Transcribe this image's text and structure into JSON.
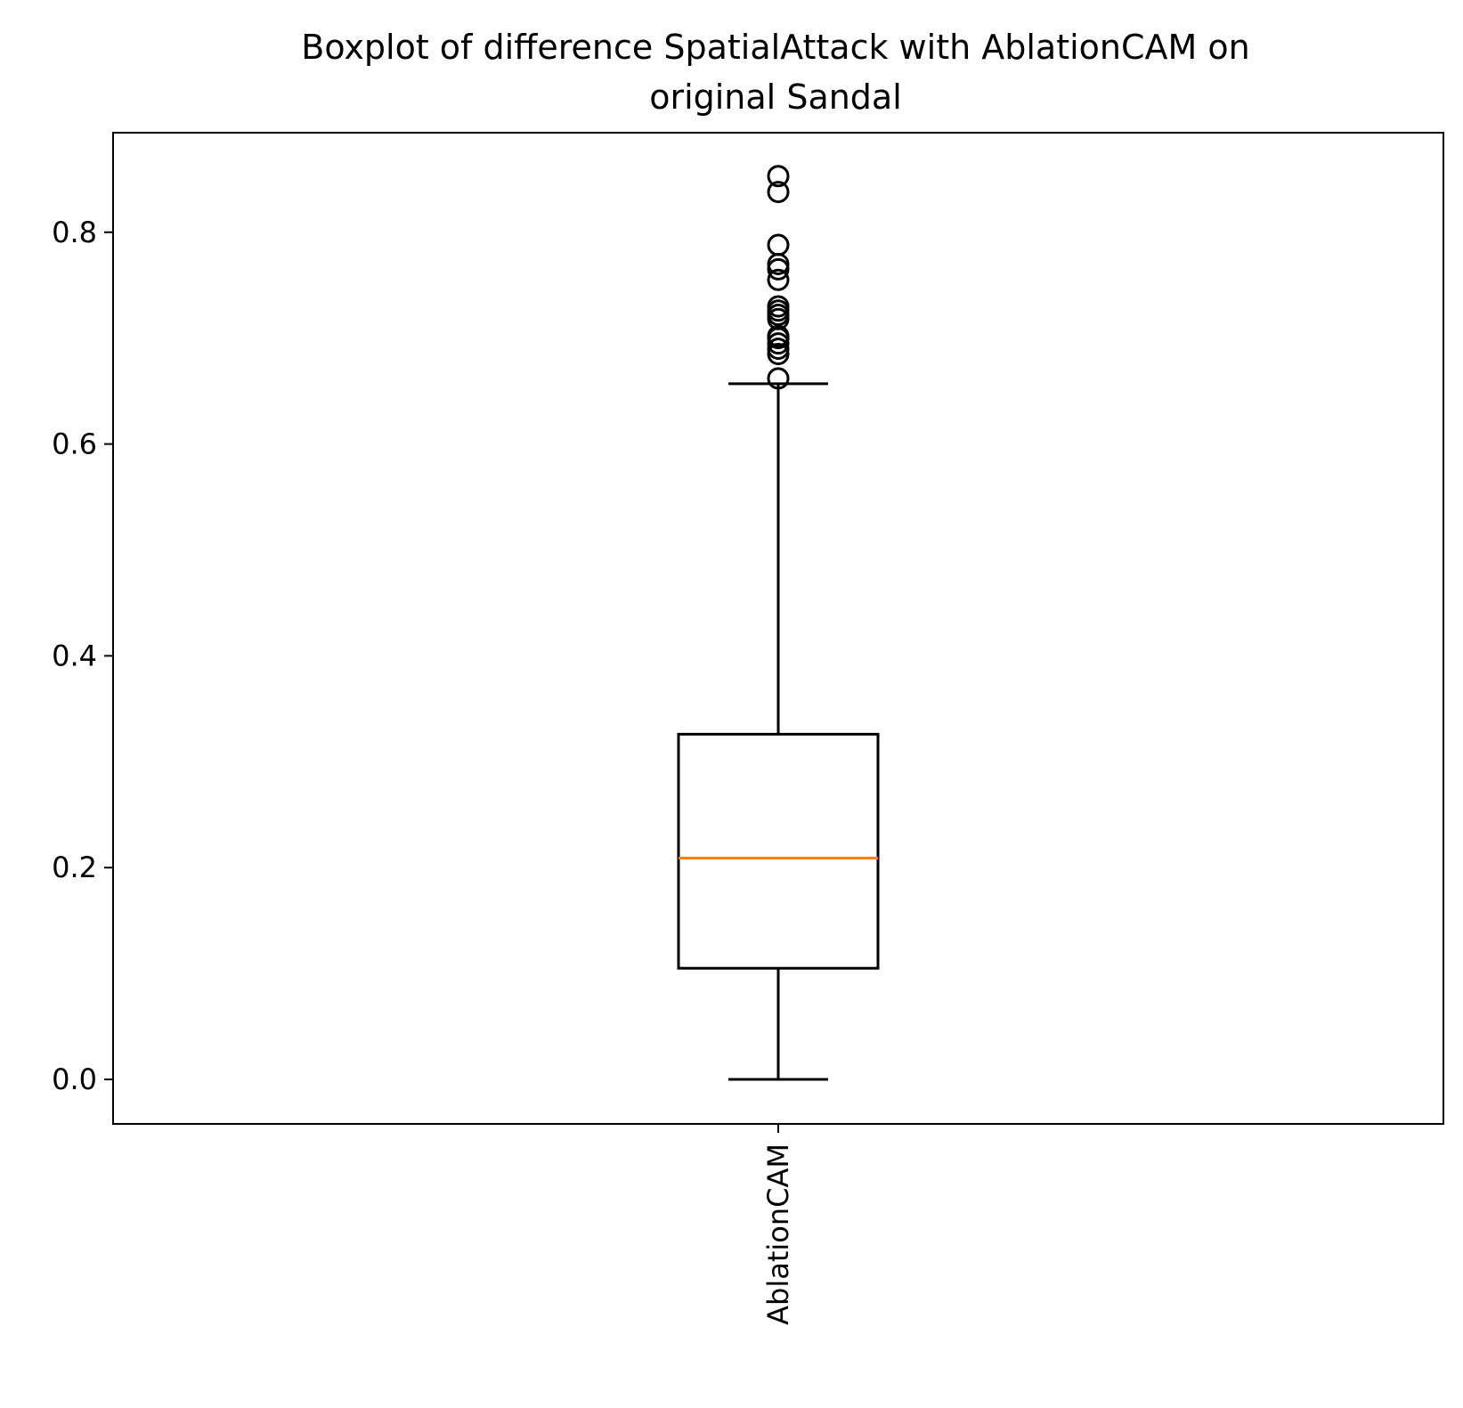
{
  "chart_data": {
    "type": "boxplot",
    "title_lines": [
      "Boxplot of difference SpatialAttack with AblationCAM on",
      "original Sandal"
    ],
    "xlabel": "",
    "ylabel": "",
    "categories": [
      "AblationCAM"
    ],
    "boxes": [
      {
        "name": "AblationCAM",
        "whisker_low": 0.0,
        "q1": 0.105,
        "median": 0.209,
        "q3": 0.326,
        "whisker_high": 0.657,
        "outliers": [
          0.662,
          0.685,
          0.69,
          0.695,
          0.7,
          0.702,
          0.718,
          0.722,
          0.726,
          0.73,
          0.755,
          0.765,
          0.77,
          0.788,
          0.838,
          0.853
        ]
      }
    ],
    "yticks": [
      "0.0",
      "0.2",
      "0.4",
      "0.6",
      "0.8"
    ],
    "ytick_values": [
      0.0,
      0.2,
      0.4,
      0.6,
      0.8
    ],
    "ylim": [
      -0.042,
      0.894
    ],
    "grid": false,
    "colors": {
      "box": "#000000",
      "median": "#ff7f0e",
      "outlier": "#000000"
    }
  }
}
